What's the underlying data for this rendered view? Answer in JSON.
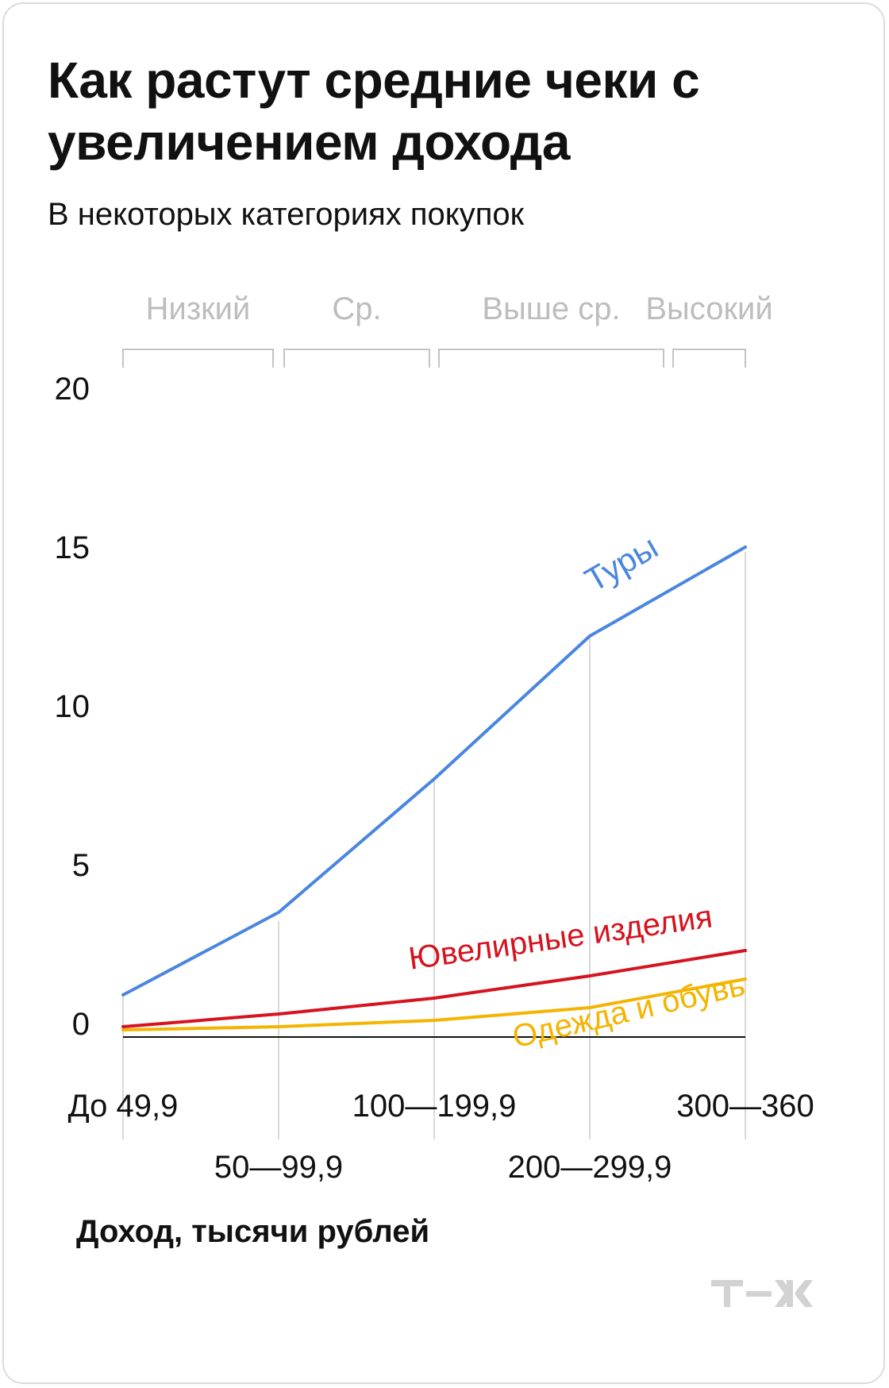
{
  "title": "Как растут средние чеки с увеличением дохода",
  "subtitle": "В некоторых категориях покупок",
  "x_axis_title": "Доход, тысячи рублей",
  "logo_text": "т—ж",
  "colors": {
    "tours": "#4a86e0",
    "jewelry": "#d6131e",
    "clothing": "#f4b400",
    "grid": "#d9d9d9",
    "bracket": "#c4c4c4",
    "bracket_text": "#bdbdbd",
    "axis": "#111111",
    "logo": "#d2d2d2"
  },
  "income_groups": [
    "Низкий",
    "Ср.",
    "Выше ср.",
    "Высокий"
  ],
  "chart_data": {
    "type": "line",
    "categories": [
      "До 49,9",
      "50—99,9",
      "100—199,9",
      "200—299,9",
      "300—360"
    ],
    "ylim": [
      0,
      20
    ],
    "yticks": [
      "0",
      "5",
      "10",
      "15",
      "20"
    ],
    "xlabel": "Доход, тысячи рублей",
    "grid": "vertical",
    "series": [
      {
        "name": "Туры",
        "values": [
          0.9,
          3.5,
          7.7,
          12.2,
          15.0
        ]
      },
      {
        "name": "Ювелирные изделия",
        "values": [
          -0.1,
          0.3,
          0.8,
          1.5,
          2.3
        ]
      },
      {
        "name": "Одежда и обувь",
        "values": [
          -0.2,
          -0.1,
          0.1,
          0.5,
          1.4
        ]
      }
    ]
  }
}
